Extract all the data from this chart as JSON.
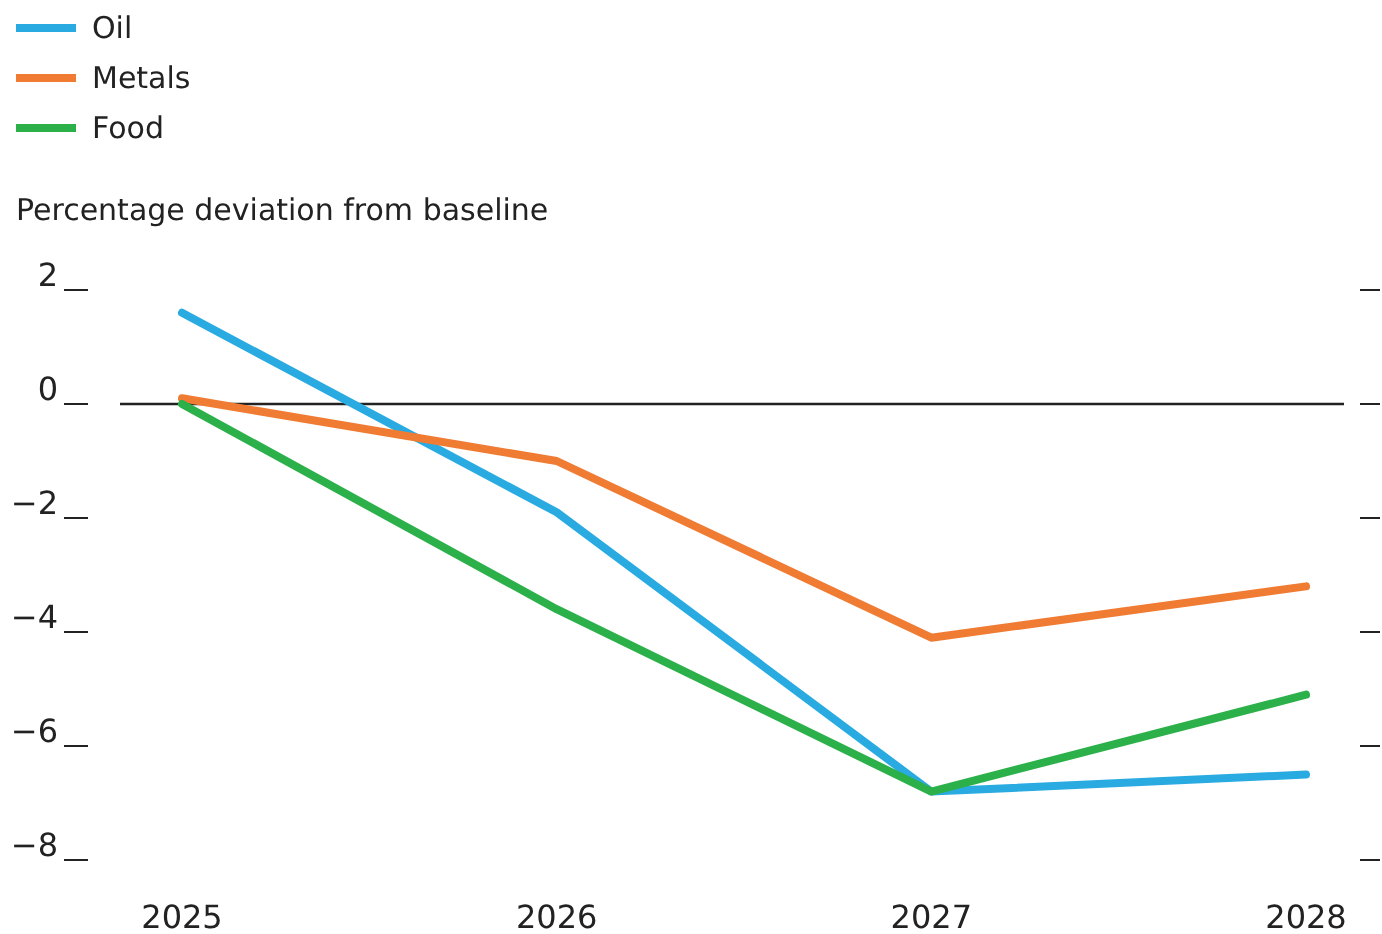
{
  "chart_data": {
    "type": "line",
    "ylabel": "Percentage deviation from baseline",
    "categories": [
      "2025",
      "2026",
      "2027",
      "2028"
    ],
    "series": [
      {
        "name": "Oil",
        "color": "#29abe2",
        "values": [
          1.6,
          -1.9,
          -6.8,
          -6.5
        ]
      },
      {
        "name": "Metals",
        "color": "#f07b32",
        "values": [
          0.1,
          -1.0,
          -4.1,
          -3.2
        ]
      },
      {
        "name": "Food",
        "color": "#2bb04a",
        "values": [
          0,
          -3.6,
          -6.8,
          -5.1
        ]
      }
    ],
    "ylim": [
      -8,
      2
    ],
    "yticks": [
      2,
      0,
      {
        "value": -2,
        "label": "−2"
      },
      {
        "value": -4,
        "label": "−4"
      },
      {
        "value": -6,
        "label": "−6"
      },
      {
        "value": -8,
        "label": "−8"
      }
    ],
    "ref_lines": [
      {
        "axis": "y",
        "value": 0,
        "color": "#222222"
      }
    ],
    "grid": false,
    "legend": "top left",
    "marker": "none",
    "line_style": "solid"
  }
}
